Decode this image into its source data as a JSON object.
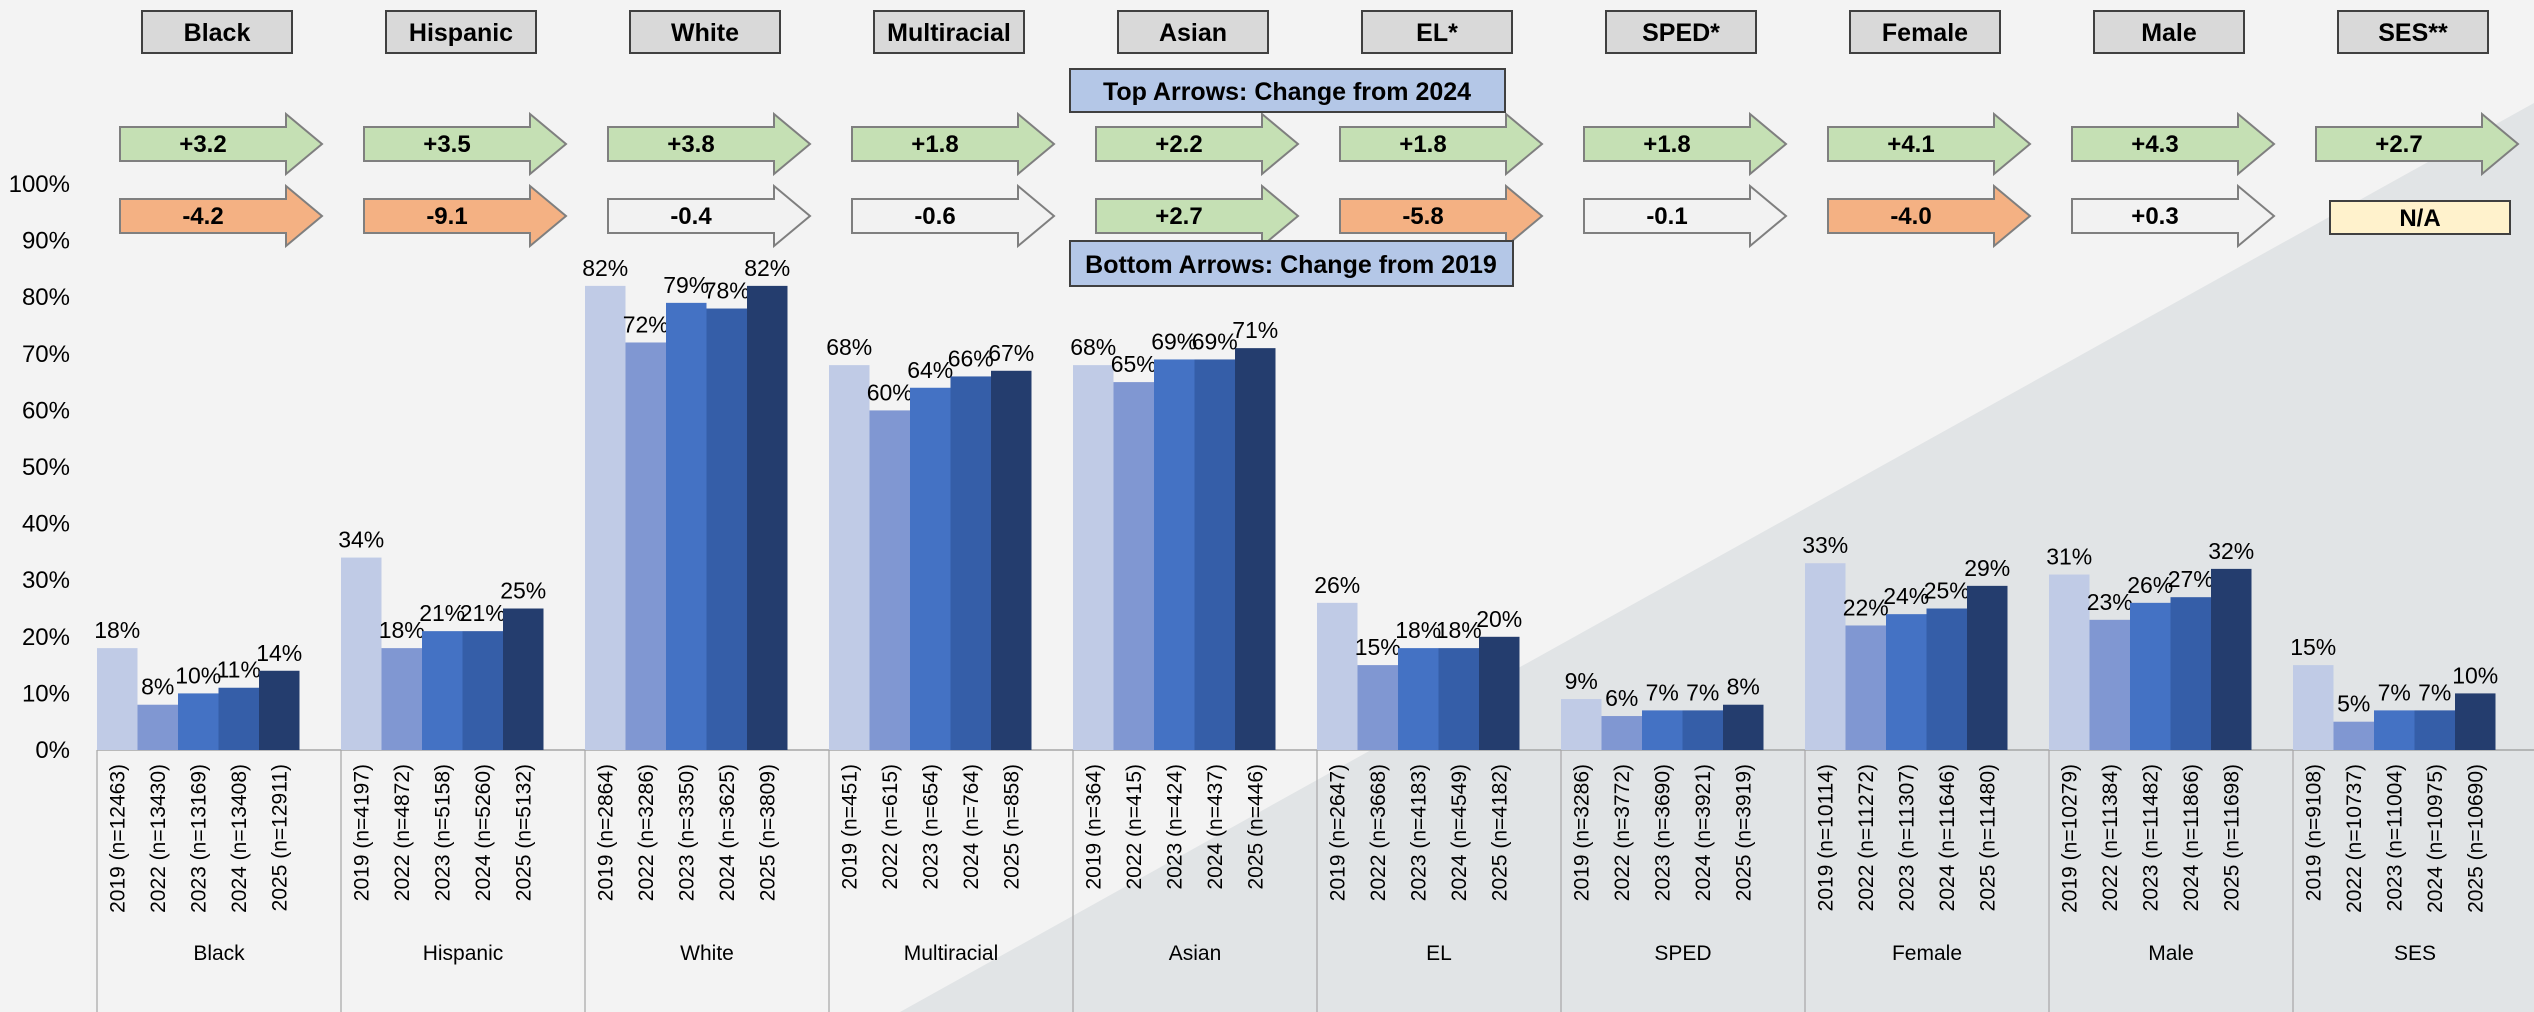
{
  "chart_data": {
    "type": "bar",
    "y_axis": {
      "ticks": [
        "0%",
        "10%",
        "20%",
        "30%",
        "40%",
        "50%",
        "60%",
        "70%",
        "80%",
        "90%",
        "100%"
      ],
      "ylim": [
        0,
        100
      ]
    },
    "colors": {
      "2019": "#c0cbe6",
      "2022": "#8097d2",
      "2023": "#4472c4",
      "2024": "#355ea8",
      "2025": "#243d6e",
      "arrow_positive": "#c5e0b4",
      "arrow_negative": "#f4b183",
      "arrow_neutral": "#f2f2f2",
      "na_box": "#fff2cc",
      "note_box": "#b4c7e7",
      "header_box": "#d9d9d9",
      "background": "#f3f3f3",
      "diagonal": "#e1e4e6"
    },
    "notes": {
      "top": "Top Arrows: Change from 2024",
      "bottom": "Bottom Arrows: Change from 2019"
    },
    "groups": [
      {
        "name": "Black",
        "header": "Black",
        "top_arrow": {
          "text": "+3.2",
          "tone": "positive"
        },
        "bottom_arrow": {
          "text": "-4.2",
          "tone": "negative"
        },
        "bars": [
          {
            "year": "2019",
            "value": 18,
            "label": "18%",
            "tick": "2019 (n=12463)"
          },
          {
            "year": "2022",
            "value": 8,
            "label": "8%",
            "tick": "2022 (n=13430)"
          },
          {
            "year": "2023",
            "value": 10,
            "label": "10%",
            "tick": "2023 (n=13169)"
          },
          {
            "year": "2024",
            "value": 11,
            "label": "11%",
            "tick": "2024 (n=13408)"
          },
          {
            "year": "2025",
            "value": 14,
            "label": "14%",
            "tick": "2025 (n=12911)"
          }
        ]
      },
      {
        "name": "Hispanic",
        "header": "Hispanic",
        "top_arrow": {
          "text": "+3.5",
          "tone": "positive"
        },
        "bottom_arrow": {
          "text": "-9.1",
          "tone": "negative"
        },
        "bars": [
          {
            "year": "2019",
            "value": 34,
            "label": "34%",
            "tick": "2019 (n=4197)"
          },
          {
            "year": "2022",
            "value": 18,
            "label": "18%",
            "tick": "2022 (n=4872)"
          },
          {
            "year": "2023",
            "value": 21,
            "label": "21%",
            "tick": "2023 (n=5158)"
          },
          {
            "year": "2024",
            "value": 21,
            "label": "21%",
            "tick": "2024 (n=5260)"
          },
          {
            "year": "2025",
            "value": 25,
            "label": "25%",
            "tick": "2025 (n=5132)"
          }
        ]
      },
      {
        "name": "White",
        "header": "White",
        "top_arrow": {
          "text": "+3.8",
          "tone": "positive"
        },
        "bottom_arrow": {
          "text": "-0.4",
          "tone": "neutral"
        },
        "bars": [
          {
            "year": "2019",
            "value": 82,
            "label": "82%",
            "tick": "2019 (n=2864)"
          },
          {
            "year": "2022",
            "value": 72,
            "label": "72%",
            "tick": "2022 (n=3286)"
          },
          {
            "year": "2023",
            "value": 79,
            "label": "79%",
            "tick": "2023 (n=3350)"
          },
          {
            "year": "2024",
            "value": 78,
            "label": "78%",
            "tick": "2024 (n=3625)"
          },
          {
            "year": "2025",
            "value": 82,
            "label": "82%",
            "tick": "2025 (n=3809)"
          }
        ]
      },
      {
        "name": "Multiracial",
        "header": "Multiracial",
        "top_arrow": {
          "text": "+1.8",
          "tone": "positive"
        },
        "bottom_arrow": {
          "text": "-0.6",
          "tone": "neutral"
        },
        "bars": [
          {
            "year": "2019",
            "value": 68,
            "label": "68%",
            "tick": "2019 (n=451)"
          },
          {
            "year": "2022",
            "value": 60,
            "label": "60%",
            "tick": "2022 (n=615)"
          },
          {
            "year": "2023",
            "value": 64,
            "label": "64%",
            "tick": "2023 (n=654)"
          },
          {
            "year": "2024",
            "value": 66,
            "label": "66%",
            "tick": "2024 (n=764)"
          },
          {
            "year": "2025",
            "value": 67,
            "label": "67%",
            "tick": "2025 (n=858)"
          }
        ]
      },
      {
        "name": "Asian",
        "header": "Asian",
        "top_arrow": {
          "text": "+2.2",
          "tone": "positive"
        },
        "bottom_arrow": {
          "text": "+2.7",
          "tone": "positive"
        },
        "bars": [
          {
            "year": "2019",
            "value": 68,
            "label": "68%",
            "tick": "2019 (n=364)"
          },
          {
            "year": "2022",
            "value": 65,
            "label": "65%",
            "tick": "2022 (n=415)"
          },
          {
            "year": "2023",
            "value": 69,
            "label": "69%",
            "tick": "2023 (n=424)"
          },
          {
            "year": "2024",
            "value": 69,
            "label": "69%",
            "tick": "2024 (n=437)"
          },
          {
            "year": "2025",
            "value": 71,
            "label": "71%",
            "tick": "2025 (n=446)"
          }
        ]
      },
      {
        "name": "EL",
        "header": "EL*",
        "top_arrow": {
          "text": "+1.8",
          "tone": "positive"
        },
        "bottom_arrow": {
          "text": "-5.8",
          "tone": "negative"
        },
        "bars": [
          {
            "year": "2019",
            "value": 26,
            "label": "26%",
            "tick": "2019 (n=2647)"
          },
          {
            "year": "2022",
            "value": 15,
            "label": "15%",
            "tick": "2022 (n=3668)"
          },
          {
            "year": "2023",
            "value": 18,
            "label": "18%",
            "tick": "2023 (n=4183)"
          },
          {
            "year": "2024",
            "value": 18,
            "label": "18%",
            "tick": "2024 (n=4549)"
          },
          {
            "year": "2025",
            "value": 20,
            "label": "20%",
            "tick": "2025 (n=4182)"
          }
        ]
      },
      {
        "name": "SPED",
        "header": "SPED*",
        "top_arrow": {
          "text": "+1.8",
          "tone": "positive"
        },
        "bottom_arrow": {
          "text": "-0.1",
          "tone": "neutral"
        },
        "bars": [
          {
            "year": "2019",
            "value": 9,
            "label": "9%",
            "tick": "2019 (n=3286)"
          },
          {
            "year": "2022",
            "value": 6,
            "label": "6%",
            "tick": "2022 (n=3772)"
          },
          {
            "year": "2023",
            "value": 7,
            "label": "7%",
            "tick": "2023 (n=3690)"
          },
          {
            "year": "2024",
            "value": 7,
            "label": "7%",
            "tick": "2024 (n=3921)"
          },
          {
            "year": "2025",
            "value": 8,
            "label": "8%",
            "tick": "2025 (n=3919)"
          }
        ]
      },
      {
        "name": "Female",
        "header": "Female",
        "top_arrow": {
          "text": "+4.1",
          "tone": "positive"
        },
        "bottom_arrow": {
          "text": "-4.0",
          "tone": "negative"
        },
        "bars": [
          {
            "year": "2019",
            "value": 33,
            "label": "33%",
            "tick": "2019 (n=10114)"
          },
          {
            "year": "2022",
            "value": 22,
            "label": "22%",
            "tick": "2022 (n=11272)"
          },
          {
            "year": "2023",
            "value": 24,
            "label": "24%",
            "tick": "2023 (n=11307)"
          },
          {
            "year": "2024",
            "value": 25,
            "label": "25%",
            "tick": "2024 (n=11646)"
          },
          {
            "year": "2025",
            "value": 29,
            "label": "29%",
            "tick": "2025 (n=11480)"
          }
        ]
      },
      {
        "name": "Male",
        "header": "Male",
        "top_arrow": {
          "text": "+4.3",
          "tone": "positive"
        },
        "bottom_arrow": {
          "text": "+0.3",
          "tone": "neutral"
        },
        "bars": [
          {
            "year": "2019",
            "value": 31,
            "label": "31%",
            "tick": "2019 (n=10279)"
          },
          {
            "year": "2022",
            "value": 23,
            "label": "23%",
            "tick": "2022 (n=11384)"
          },
          {
            "year": "2023",
            "value": 26,
            "label": "26%",
            "tick": "2023 (n=11482)"
          },
          {
            "year": "2024",
            "value": 27,
            "label": "27%",
            "tick": "2024 (n=11866)"
          },
          {
            "year": "2025",
            "value": 32,
            "label": "32%",
            "tick": "2025 (n=11698)"
          }
        ]
      },
      {
        "name": "SES",
        "header": "SES**",
        "top_arrow": {
          "text": "+2.7",
          "tone": "positive"
        },
        "bottom_box": {
          "text": "N/A"
        },
        "bars": [
          {
            "year": "2019",
            "value": 15,
            "label": "15%",
            "tick": "2019 (n=9108)"
          },
          {
            "year": "2022",
            "value": 5,
            "label": "5%",
            "tick": "2022 (n=10737)"
          },
          {
            "year": "2023",
            "value": 7,
            "label": "7%",
            "tick": "2023 (n=11004)"
          },
          {
            "year": "2024",
            "value": 7,
            "label": "7%",
            "tick": "2024 (n=10975)"
          },
          {
            "year": "2025",
            "value": 10,
            "label": "10%",
            "tick": "2025 (n=10690)"
          }
        ]
      }
    ]
  }
}
